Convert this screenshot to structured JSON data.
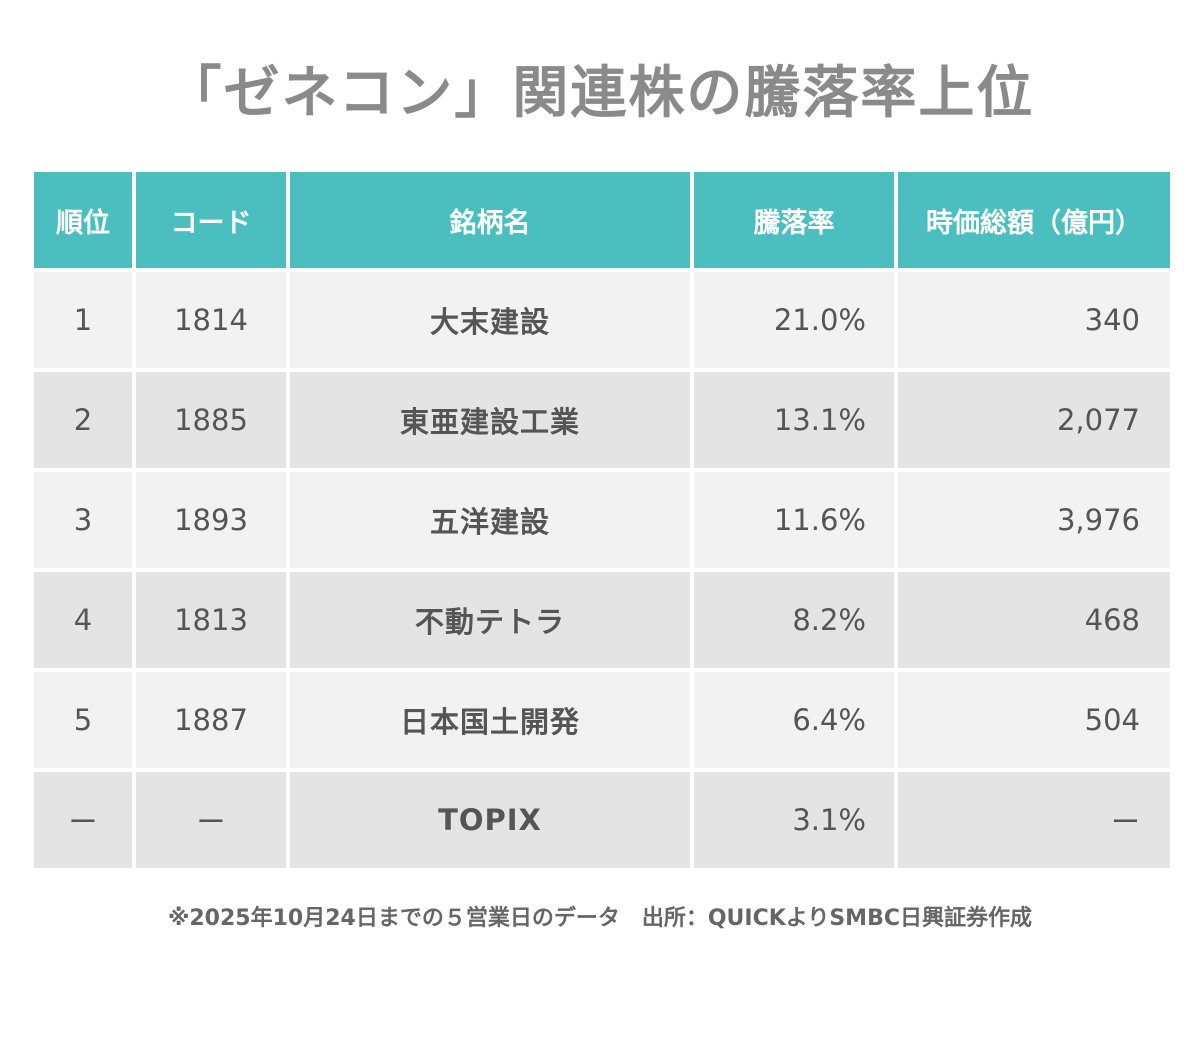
{
  "title": "「ゼネコン」関連株の騰落率上位",
  "chart_data": {
    "type": "table",
    "title": "「ゼネコン」関連株の騰落率上位",
    "columns": [
      "順位",
      "コード",
      "銘柄名",
      "騰落率",
      "時価総額（億円）"
    ],
    "rows": [
      {
        "rank": "1",
        "code": "1814",
        "name": "大末建設",
        "change": "21.0%",
        "market_cap": "340"
      },
      {
        "rank": "2",
        "code": "1885",
        "name": "東亜建設工業",
        "change": "13.1%",
        "market_cap": "2,077"
      },
      {
        "rank": "3",
        "code": "1893",
        "name": "五洋建設",
        "change": "11.6%",
        "market_cap": "3,976"
      },
      {
        "rank": "4",
        "code": "1813",
        "name": "不動テトラ",
        "change": "8.2%",
        "market_cap": "468"
      },
      {
        "rank": "5",
        "code": "1887",
        "name": "日本国土開発",
        "change": "6.4%",
        "market_cap": "504"
      },
      {
        "rank": "ー",
        "code": "ー",
        "name": "TOPIX",
        "change": "3.1%",
        "market_cap": "ー"
      }
    ]
  },
  "footnote": "※2025年10月24日までの５営業日のデータ　出所：QUICKよりSMBC日興証券作成",
  "colors": {
    "header_bg": "#4bbfbf",
    "header_text": "#ffffff",
    "row_light": "#f2f2f2",
    "row_dark": "#e4e4e4",
    "title_text": "#8a8a8a"
  }
}
